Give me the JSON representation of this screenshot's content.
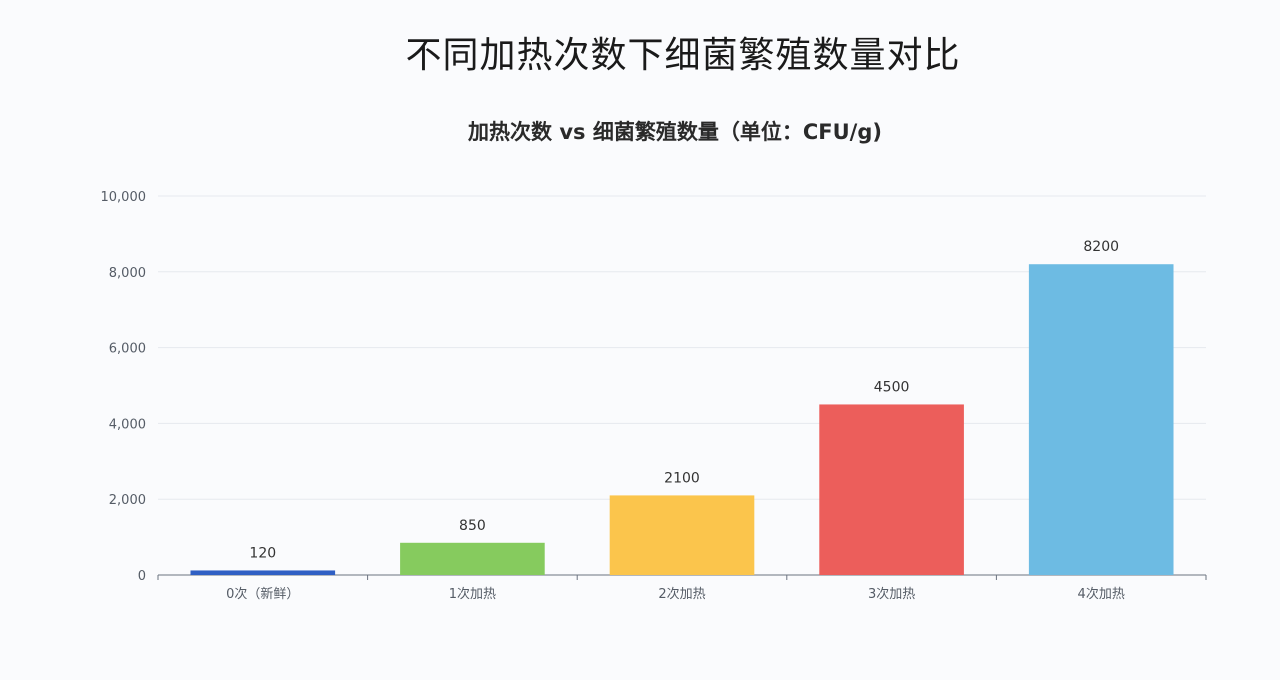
{
  "page": {
    "title": "不同加热次数下细菌繁殖数量对比"
  },
  "chart_data": {
    "type": "bar",
    "title": "加热次数 vs 细菌繁殖数量（单位：CFU/g)",
    "xlabel": "",
    "ylabel": "",
    "categories": [
      "0次（新鲜）",
      "1次加热",
      "2次加热",
      "3次加热",
      "4次加热"
    ],
    "values": [
      120,
      850,
      2100,
      4500,
      8200
    ],
    "value_labels": [
      "120",
      "850",
      "2100",
      "4500",
      "8200"
    ],
    "bar_colors": [
      "#2f5fc4",
      "#86cb5e",
      "#fbc54c",
      "#ec5e5b",
      "#6dbbe3"
    ],
    "ylim": [
      0,
      10000
    ],
    "yticks": [
      0,
      2000,
      4000,
      6000,
      8000,
      10000
    ],
    "ytick_labels": [
      "0",
      "2,000",
      "4,000",
      "6,000",
      "8,000",
      "10,000"
    ],
    "grid": true,
    "legend": "none"
  }
}
